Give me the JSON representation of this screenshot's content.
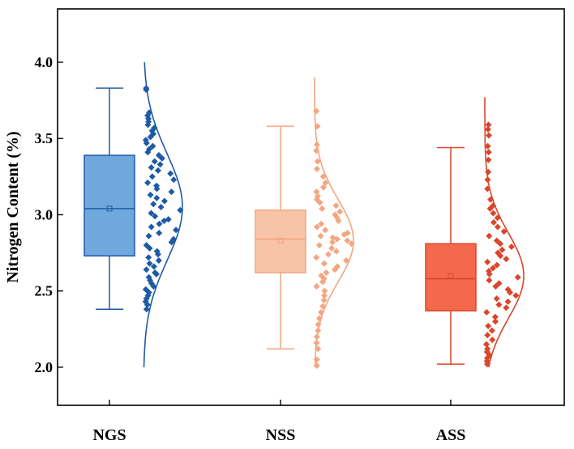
{
  "chart_data": {
    "type": "box-scatter-distribution",
    "title": "",
    "xlabel": "",
    "ylabel": "Nitrogen Content (%)",
    "ylim": [
      1.75,
      4.35
    ],
    "yticks": [
      2.0,
      2.5,
      3.0,
      3.5,
      4.0
    ],
    "ytick_labels": [
      "2.0",
      "2.5",
      "3.0",
      "3.5",
      "4.0"
    ],
    "grid": false,
    "legend": "none",
    "categories": [
      "NGS",
      "NSS",
      "ASS"
    ],
    "series": [
      {
        "name": "NGS",
        "color": "#1f5aa6",
        "box_fill": "#6fa8dc",
        "whisker_low": 2.38,
        "q1": 2.73,
        "median": 3.04,
        "mean": 3.04,
        "q3": 3.39,
        "whisker_high": 3.83,
        "dist_mean": 3.05,
        "dist_sd": 0.35,
        "dist_range": [
          2.0,
          4.0
        ],
        "points": [
          2.38,
          2.41,
          2.43,
          2.45,
          2.47,
          2.49,
          2.51,
          2.53,
          2.55,
          2.57,
          2.59,
          2.61,
          2.62,
          2.64,
          2.66,
          2.68,
          2.7,
          2.72,
          2.74,
          2.76,
          2.78,
          2.8,
          2.82,
          2.84,
          2.86,
          2.88,
          2.9,
          2.92,
          2.94,
          2.96,
          2.97,
          2.99,
          3.01,
          3.03,
          3.05,
          3.07,
          3.09,
          3.11,
          3.13,
          3.15,
          3.17,
          3.19,
          3.21,
          3.23,
          3.25,
          3.27,
          3.29,
          3.31,
          3.33,
          3.35,
          3.37,
          3.39,
          3.41,
          3.43,
          3.45,
          3.47,
          3.49,
          3.51,
          3.53,
          3.55,
          3.57,
          3.59,
          3.61,
          3.63,
          3.65,
          3.67,
          3.82,
          3.83
        ]
      },
      {
        "name": "NSS",
        "color": "#f4a582",
        "box_fill": "#f7c4a8",
        "whisker_low": 2.12,
        "q1": 2.62,
        "median": 2.84,
        "mean": 2.83,
        "q3": 3.03,
        "whisker_high": 3.58,
        "dist_mean": 2.83,
        "dist_sd": 0.27,
        "dist_range": [
          2.0,
          3.9
        ],
        "points": [
          2.01,
          2.05,
          2.12,
          2.16,
          2.2,
          2.24,
          2.28,
          2.32,
          2.36,
          2.4,
          2.44,
          2.47,
          2.5,
          2.53,
          2.56,
          2.58,
          2.6,
          2.62,
          2.64,
          2.66,
          2.68,
          2.7,
          2.72,
          2.74,
          2.76,
          2.78,
          2.8,
          2.81,
          2.82,
          2.83,
          2.84,
          2.85,
          2.86,
          2.87,
          2.88,
          2.9,
          2.92,
          2.94,
          2.96,
          2.98,
          3.0,
          3.02,
          3.04,
          3.06,
          3.08,
          3.1,
          3.12,
          3.15,
          3.18,
          3.21,
          3.25,
          3.3,
          3.35,
          3.42,
          3.46,
          3.58,
          3.68
        ]
      },
      {
        "name": "ASS",
        "color": "#d9462b",
        "box_fill": "#f4694c",
        "whisker_low": 2.02,
        "q1": 2.37,
        "median": 2.58,
        "mean": 2.6,
        "q3": 2.81,
        "whisker_high": 3.44,
        "dist_mean": 2.6,
        "dist_sd": 0.28,
        "dist_range": [
          2.0,
          3.77
        ],
        "points": [
          2.02,
          2.04,
          2.06,
          2.08,
          2.1,
          2.12,
          2.15,
          2.18,
          2.21,
          2.24,
          2.27,
          2.3,
          2.33,
          2.36,
          2.39,
          2.41,
          2.43,
          2.45,
          2.47,
          2.49,
          2.51,
          2.53,
          2.55,
          2.57,
          2.59,
          2.61,
          2.63,
          2.65,
          2.67,
          2.69,
          2.71,
          2.73,
          2.75,
          2.77,
          2.79,
          2.81,
          2.83,
          2.86,
          2.89,
          2.92,
          2.95,
          2.98,
          3.01,
          3.04,
          3.06,
          3.1,
          3.17,
          3.23,
          3.28,
          3.36,
          3.41,
          3.45,
          3.52,
          3.56,
          3.59
        ]
      }
    ]
  }
}
